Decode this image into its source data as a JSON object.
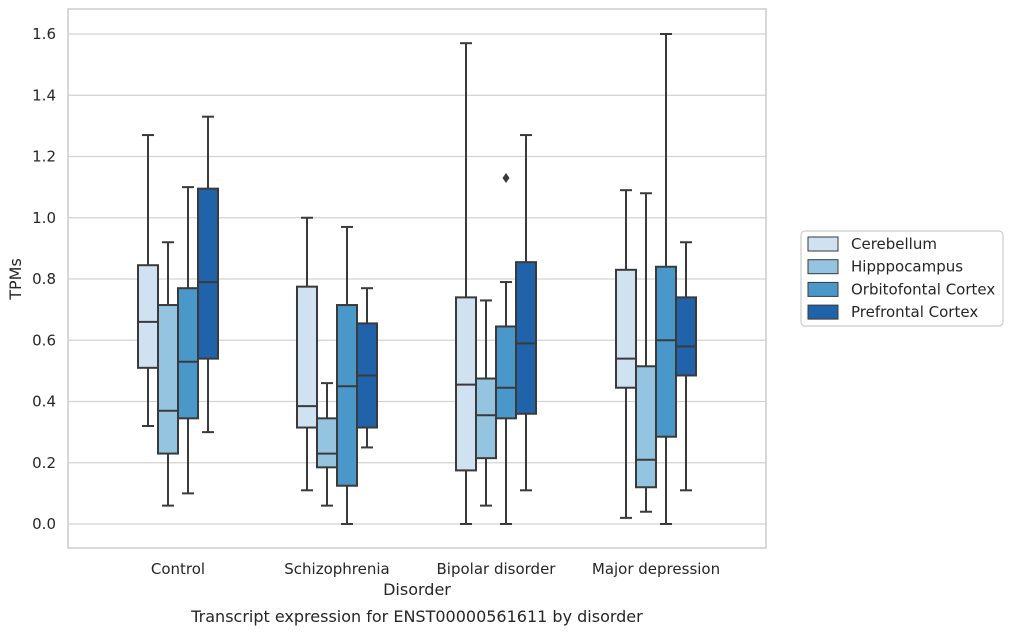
{
  "chart_data": {
    "type": "boxplot",
    "xlabel": "Disorder",
    "ylabel": "TPMs",
    "caption": "Transcript expression for ENST00000561611 by disorder",
    "ylim": [
      -0.08,
      1.68
    ],
    "yticks": [
      0.0,
      0.2,
      0.4,
      0.6,
      0.8,
      1.0,
      1.2,
      1.4,
      1.6
    ],
    "ytick_labels": [
      "0.0",
      "0.2",
      "0.4",
      "0.6",
      "0.8",
      "1.0",
      "1.2",
      "1.4",
      "1.6"
    ],
    "grid": "horizontal",
    "legend_position": "right",
    "categories": [
      "Control",
      "Schizophrenia",
      "Bipolar disorder",
      "Major depression"
    ],
    "series": [
      {
        "name": "Cerebellum",
        "color": "#d0e1f2",
        "boxes": [
          {
            "whislo": 0.32,
            "q1": 0.51,
            "med": 0.66,
            "q3": 0.845,
            "whishi": 1.27,
            "fliers": []
          },
          {
            "whislo": 0.11,
            "q1": 0.315,
            "med": 0.385,
            "q3": 0.775,
            "whishi": 1.0,
            "fliers": []
          },
          {
            "whislo": 0.0,
            "q1": 0.175,
            "med": 0.455,
            "q3": 0.74,
            "whishi": 1.57,
            "fliers": []
          },
          {
            "whislo": 0.02,
            "q1": 0.445,
            "med": 0.54,
            "q3": 0.83,
            "whishi": 1.09,
            "fliers": []
          }
        ]
      },
      {
        "name": "Hipppocampus",
        "color": "#94c4df",
        "boxes": [
          {
            "whislo": 0.06,
            "q1": 0.23,
            "med": 0.37,
            "q3": 0.715,
            "whishi": 0.92,
            "fliers": []
          },
          {
            "whislo": 0.06,
            "q1": 0.185,
            "med": 0.23,
            "q3": 0.345,
            "whishi": 0.46,
            "fliers": []
          },
          {
            "whislo": 0.06,
            "q1": 0.215,
            "med": 0.355,
            "q3": 0.475,
            "whishi": 0.73,
            "fliers": []
          },
          {
            "whislo": 0.04,
            "q1": 0.12,
            "med": 0.21,
            "q3": 0.515,
            "whishi": 1.08,
            "fliers": []
          }
        ]
      },
      {
        "name": "Orbitofontal Cortex",
        "color": "#4a98c9",
        "boxes": [
          {
            "whislo": 0.1,
            "q1": 0.345,
            "med": 0.53,
            "q3": 0.77,
            "whishi": 1.1,
            "fliers": []
          },
          {
            "whislo": 0.0,
            "q1": 0.125,
            "med": 0.45,
            "q3": 0.715,
            "whishi": 0.97,
            "fliers": []
          },
          {
            "whislo": 0.0,
            "q1": 0.345,
            "med": 0.445,
            "q3": 0.645,
            "whishi": 0.79,
            "fliers": [
              1.13
            ]
          },
          {
            "whislo": 0.0,
            "q1": 0.285,
            "med": 0.6,
            "q3": 0.84,
            "whishi": 1.6,
            "fliers": []
          }
        ]
      },
      {
        "name": "Prefrontal Cortex",
        "color": "#2163aa",
        "boxes": [
          {
            "whislo": 0.3,
            "q1": 0.54,
            "med": 0.79,
            "q3": 1.095,
            "whishi": 1.33,
            "fliers": []
          },
          {
            "whislo": 0.25,
            "q1": 0.315,
            "med": 0.485,
            "q3": 0.655,
            "whishi": 0.77,
            "fliers": []
          },
          {
            "whislo": 0.11,
            "q1": 0.36,
            "med": 0.59,
            "q3": 0.855,
            "whishi": 1.27,
            "fliers": []
          },
          {
            "whislo": 0.11,
            "q1": 0.485,
            "med": 0.58,
            "q3": 0.74,
            "whishi": 0.92,
            "fliers": []
          }
        ]
      }
    ]
  },
  "colors": {
    "grid": "#d3d3d3",
    "frame": "#cccccc",
    "lines": "#3a3a3a"
  }
}
